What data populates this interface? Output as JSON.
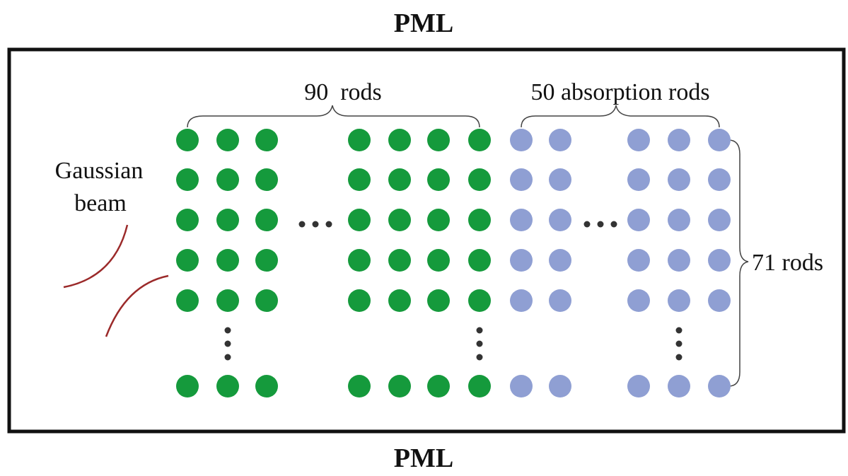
{
  "diagram": {
    "pml_top": "PML",
    "pml_bottom": "PML",
    "source_label": [
      "Gaussian",
      "beam"
    ],
    "rods_label": "90  rods",
    "absorption_label": "50 absorption rods",
    "rows_label": "71 rods",
    "colors": {
      "rod": "#159a3c",
      "absorption_rod": "#8f9fd3",
      "beam": "#9b2a2a",
      "dots": "#333333",
      "border": "#111111"
    }
  }
}
